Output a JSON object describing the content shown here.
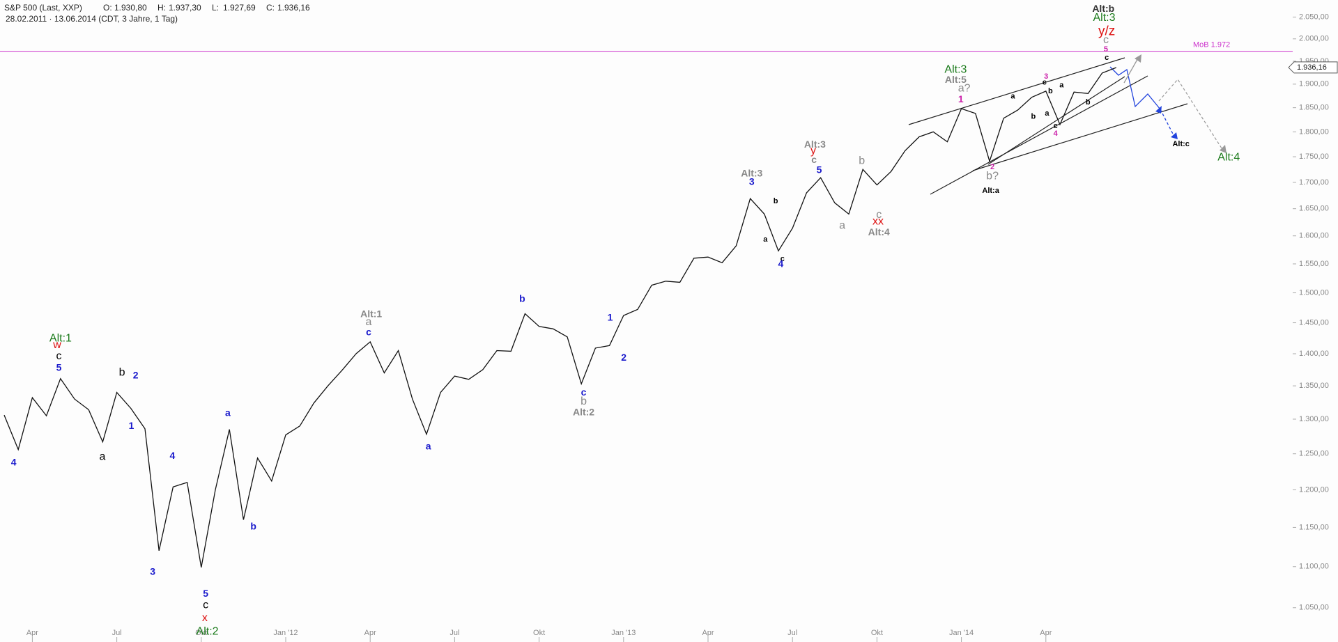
{
  "chart_data": {
    "type": "line",
    "title": "S&P 500 (Last, XXP)",
    "ohlc": [
      {
        "label": "O:",
        "value": "1.930,80"
      },
      {
        "label": "H:",
        "value": "1.937,30"
      },
      {
        "label": "L:",
        "value": "1.927,69"
      },
      {
        "label": "C:",
        "value": "1.936,16"
      }
    ],
    "subtitle": "28.02.2011 · 13.06.2014 (CDT, 3 Jahre, 1 Tag)",
    "log_scale": true,
    "color": "#111111",
    "categories": [
      null,
      null,
      "Apr",
      null,
      null,
      null,
      null,
      null,
      "Jul",
      null,
      null,
      null,
      null,
      null,
      "Okt",
      null,
      null,
      null,
      null,
      null,
      "Jan '12",
      null,
      null,
      null,
      null,
      null,
      "Apr",
      null,
      null,
      null,
      null,
      null,
      "Jul",
      null,
      null,
      null,
      null,
      null,
      "Okt",
      null,
      null,
      null,
      null,
      null,
      "Jan '13",
      null,
      null,
      null,
      null,
      null,
      "Apr",
      null,
      null,
      null,
      null,
      null,
      "Jul",
      null,
      null,
      null,
      null,
      null,
      "Okt",
      null,
      null,
      null,
      null,
      null,
      "Jan '14",
      null,
      null,
      null,
      null,
      null,
      "Apr",
      null,
      null,
      null,
      null,
      null
    ],
    "values": [
      1306,
      1256,
      1332,
      1305,
      1361,
      1330,
      1314,
      1267,
      1340,
      1316,
      1286,
      1120,
      1204,
      1210,
      1099,
      1200,
      1285,
      1160,
      1244,
      1212,
      1277,
      1290,
      1324,
      1350,
      1374,
      1400,
      1419,
      1370,
      1405,
      1330,
      1278,
      1340,
      1365,
      1360,
      1375,
      1405,
      1404,
      1465,
      1444,
      1440,
      1427,
      1353,
      1409,
      1413,
      1462,
      1472,
      1513,
      1520,
      1518,
      1560,
      1562,
      1552,
      1582,
      1669,
      1640,
      1573,
      1614,
      1680,
      1709,
      1661,
      1640,
      1725,
      1695,
      1721,
      1762,
      1790,
      1800,
      1780,
      1848,
      1838,
      1741,
      1828,
      1845,
      1872,
      1885,
      1815,
      1883,
      1880,
      1924,
      1936
    ],
    "ylim": [
      1010,
      2090
    ],
    "yticks": [
      {
        "value": 1050,
        "label": "1.050,00"
      },
      {
        "value": 1100,
        "label": "1.100,00"
      },
      {
        "value": 1150,
        "label": "1.150,00"
      },
      {
        "value": 1200,
        "label": "1.200,00"
      },
      {
        "value": 1250,
        "label": "1.250,00"
      },
      {
        "value": 1300,
        "label": "1.300,00"
      },
      {
        "value": 1350,
        "label": "1.350,00"
      },
      {
        "value": 1400,
        "label": "1.400,00"
      },
      {
        "value": 1450,
        "label": "1.450,00"
      },
      {
        "value": 1500,
        "label": "1.500,00"
      },
      {
        "value": 1550,
        "label": "1.550,00"
      },
      {
        "value": 1600,
        "label": "1.600,00"
      },
      {
        "value": 1650,
        "label": "1.650,00"
      },
      {
        "value": 1700,
        "label": "1.700,00"
      },
      {
        "value": 1750,
        "label": "1.750,00"
      },
      {
        "value": 1800,
        "label": "1.800,00"
      },
      {
        "value": 1850,
        "label": "1.850,00"
      },
      {
        "value": 1900,
        "label": "1.900,00"
      },
      {
        "value": 1950,
        "label": "1.950,00"
      },
      {
        "value": 2000,
        "label": "2.000,00"
      },
      {
        "value": 2050,
        "label": "2.050,00"
      }
    ],
    "grid": false,
    "last_price": {
      "value": 1936.16,
      "label": "1.936,16"
    },
    "reference_lines": [
      {
        "label": "MoB 1.972",
        "value": 1972,
        "color": "#cc33cc"
      }
    ],
    "annotations": [
      {
        "text": "Alt:1",
        "color": "#1a7a1a"
      },
      {
        "text": "w",
        "color": "#dd1111"
      },
      {
        "text": "c",
        "color": "#000000"
      },
      {
        "text": "5",
        "color": "#1a1acc"
      },
      {
        "text": "4",
        "color": "#1a1acc"
      },
      {
        "text": "b",
        "color": "#000000"
      },
      {
        "text": "2",
        "color": "#1a1acc"
      },
      {
        "text": "1",
        "color": "#1a1acc"
      },
      {
        "text": "a",
        "color": "#000000"
      },
      {
        "text": "3",
        "color": "#1a1acc"
      },
      {
        "text": "4",
        "color": "#1a1acc"
      },
      {
        "text": "a",
        "color": "#1a1acc"
      },
      {
        "text": "b",
        "color": "#1a1acc"
      },
      {
        "text": "5",
        "color": "#1a1acc"
      },
      {
        "text": "c",
        "color": "#000000"
      },
      {
        "text": "x",
        "color": "#dd1111"
      },
      {
        "text": "Alt:2",
        "color": "#1a7a1a"
      },
      {
        "text": "Alt:1",
        "color": "#888888"
      },
      {
        "text": "a",
        "color": "#888888"
      },
      {
        "text": "c",
        "color": "#1a1acc"
      },
      {
        "text": "a",
        "color": "#1a1acc"
      },
      {
        "text": "b",
        "color": "#1a1acc"
      },
      {
        "text": "c",
        "color": "#1a1acc"
      },
      {
        "text": "b",
        "color": "#888888"
      },
      {
        "text": "Alt:2",
        "color": "#888888"
      },
      {
        "text": "1",
        "color": "#1a1acc"
      },
      {
        "text": "2",
        "color": "#1a1acc"
      },
      {
        "text": "Alt:3",
        "color": "#888888"
      },
      {
        "text": "3",
        "color": "#1a1acc"
      },
      {
        "text": "b",
        "color": "#000000"
      },
      {
        "text": "a",
        "color": "#000000"
      },
      {
        "text": "c",
        "color": "#000000"
      },
      {
        "text": "4",
        "color": "#1a1acc"
      },
      {
        "text": "Alt:3",
        "color": "#888888"
      },
      {
        "text": "y",
        "color": "#dd1111"
      },
      {
        "text": "c",
        "color": "#888888"
      },
      {
        "text": "5",
        "color": "#1a1acc"
      },
      {
        "text": "b",
        "color": "#888888"
      },
      {
        "text": "a",
        "color": "#888888"
      },
      {
        "text": "c",
        "color": "#888888"
      },
      {
        "text": "xx",
        "color": "#dd1111"
      },
      {
        "text": "Alt:4",
        "color": "#888888"
      },
      {
        "text": "Alt:3",
        "color": "#1a7a1a"
      },
      {
        "text": "Alt:5",
        "color": "#888888"
      },
      {
        "text": "a?",
        "color": "#888888"
      },
      {
        "text": "1",
        "color": "#cc22aa"
      },
      {
        "text": "2",
        "color": "#cc22aa"
      },
      {
        "text": "b?",
        "color": "#888888"
      },
      {
        "text": "Alt:a",
        "color": "#000000"
      },
      {
        "text": "3",
        "color": "#cc22aa"
      },
      {
        "text": "c",
        "color": "#000000"
      },
      {
        "text": "b",
        "color": "#000000"
      },
      {
        "text": "a",
        "color": "#000000"
      },
      {
        "text": "b",
        "color": "#000000"
      },
      {
        "text": "a",
        "color": "#000000"
      },
      {
        "text": "a",
        "color": "#000000"
      },
      {
        "text": "c",
        "color": "#000000"
      },
      {
        "text": "4",
        "color": "#cc22aa"
      },
      {
        "text": "b",
        "color": "#000000"
      },
      {
        "text": "Alt:b",
        "color": "#333333"
      },
      {
        "text": "Alt:3",
        "color": "#1a7a1a"
      },
      {
        "text": "y/z",
        "color": "#dd1111"
      },
      {
        "text": "c",
        "color": "#888888"
      },
      {
        "text": "5",
        "color": "#cc22aa"
      },
      {
        "text": "c",
        "color": "#000000"
      },
      {
        "text": "Alt:c",
        "color": "#000000"
      },
      {
        "text": "Alt:4",
        "color": "#1a7a1a"
      }
    ]
  }
}
